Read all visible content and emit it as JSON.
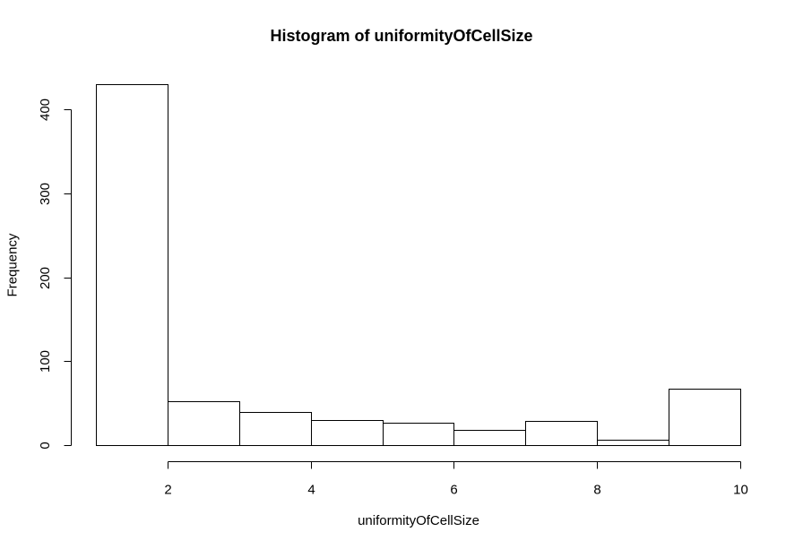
{
  "chart_data": {
    "type": "bar",
    "title": "Histogram of uniformityOfCellSize",
    "xlabel": "uniformityOfCellSize",
    "ylabel": "Frequency",
    "bins": [
      {
        "from": 1,
        "to": 2,
        "count": 430
      },
      {
        "from": 2,
        "to": 3,
        "count": 52
      },
      {
        "from": 3,
        "to": 4,
        "count": 39
      },
      {
        "from": 4,
        "to": 5,
        "count": 30
      },
      {
        "from": 5,
        "to": 6,
        "count": 27
      },
      {
        "from": 6,
        "to": 7,
        "count": 18
      },
      {
        "from": 7,
        "to": 8,
        "count": 29
      },
      {
        "from": 8,
        "to": 9,
        "count": 6
      },
      {
        "from": 9,
        "to": 10,
        "count": 67
      }
    ],
    "xlim": [
      1,
      10
    ],
    "ylim": [
      0,
      430
    ],
    "x_ticks": [
      2,
      4,
      6,
      8,
      10
    ],
    "y_ticks": [
      0,
      100,
      200,
      300,
      400
    ],
    "grid": false
  }
}
